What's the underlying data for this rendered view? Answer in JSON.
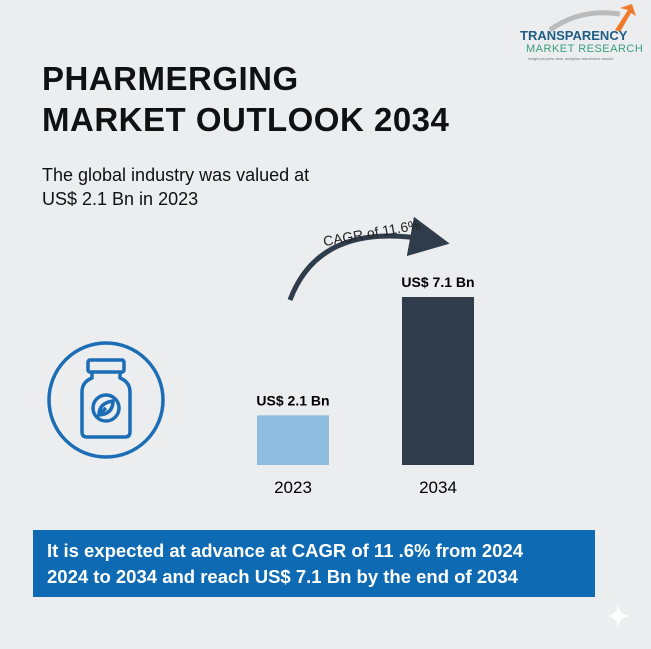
{
  "logo": {
    "line1": "TRANSPARENCY",
    "line2": "MARKET RESEARCH",
    "tagline": "insight propels view, analytics transforms results"
  },
  "title": [
    "PHARMERGING",
    "MARKET OUTLOOK 2034"
  ],
  "subtitle": [
    "The global industry was valued at",
    "US$ 2.1 Bn in 2023"
  ],
  "icon": "medicine-bottle-leaf-icon",
  "chart_data": {
    "type": "bar",
    "categories": [
      "2023",
      "2034"
    ],
    "values": [
      2.1,
      7.1
    ],
    "data_labels": [
      "US$ 2.1 Bn",
      "US$ 7.1 Bn"
    ],
    "colors": [
      "#8fbde0",
      "#2e3c4c"
    ],
    "annotation": "CAGR of 11.6%",
    "ylim": [
      0,
      8
    ]
  },
  "banner": [
    "It is expected at advance at CAGR of 11 .6% from 2024",
    "2024 to 2034 and reach US$ 7.1 Bn by the end of 2034"
  ]
}
